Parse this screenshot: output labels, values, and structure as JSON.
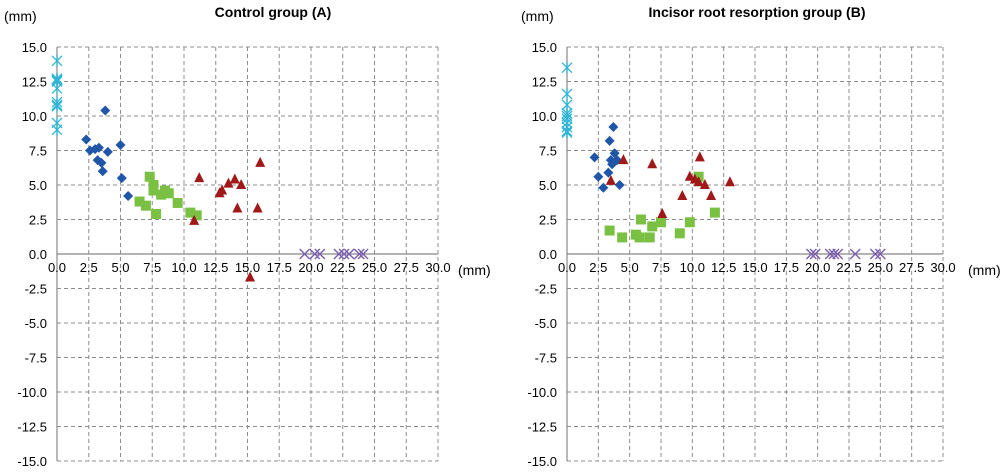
{
  "chart_data": [
    {
      "type": "scatter",
      "title": "Control group (A)",
      "xlabel": "(mm)",
      "ylabel": "(mm)",
      "xlim": [
        0,
        30
      ],
      "ylim": [
        -15,
        15
      ],
      "xticks": [
        "0.0",
        "2.5",
        "5.0",
        "7.5",
        "10.0",
        "12.5",
        "15.0",
        "17.5",
        "20.0",
        "22.5",
        "25.0",
        "27.5",
        "30.0"
      ],
      "yticks": [
        "15.0",
        "12.5",
        "10.0",
        "7.5",
        "5.0",
        "2.5",
        "0.0",
        "-2.5",
        "-5.0",
        "-7.5",
        "-10.0",
        "-12.5",
        "-15.0"
      ],
      "grid": true,
      "series": [
        {
          "marker": "star",
          "color": "#31b5d6",
          "x": [
            0,
            0,
            0,
            0,
            0,
            0,
            0,
            0,
            0,
            0,
            0
          ],
          "y": [
            14.0,
            12.7,
            12.6,
            12.5,
            12.0,
            11.0,
            10.8,
            10.7,
            9.5,
            9.0,
            12.6
          ]
        },
        {
          "marker": "diamond",
          "color": "#1f56a8",
          "x": [
            2.3,
            2.6,
            3.0,
            3.2,
            3.3,
            3.5,
            3.6,
            3.8,
            4.0,
            5.0,
            5.1,
            5.6
          ],
          "y": [
            8.3,
            7.5,
            7.6,
            6.8,
            7.7,
            6.6,
            6.0,
            10.4,
            7.4,
            7.9,
            5.5,
            4.2
          ]
        },
        {
          "marker": "square",
          "color": "#7ac143",
          "x": [
            6.5,
            7.0,
            7.3,
            7.6,
            7.6,
            7.8,
            8.2,
            8.5,
            8.8,
            9.5,
            10.5,
            11.0
          ],
          "y": [
            3.8,
            3.5,
            5.6,
            5.0,
            4.6,
            2.9,
            4.3,
            4.6,
            4.4,
            3.7,
            3.0,
            2.8
          ]
        },
        {
          "marker": "triangle",
          "color": "#a01818",
          "x": [
            10.8,
            11.2,
            12.8,
            13.0,
            13.5,
            14.0,
            14.5,
            14.2,
            15.2,
            15.8,
            16.0
          ],
          "y": [
            2.4,
            5.5,
            4.4,
            4.6,
            5.1,
            5.4,
            5.0,
            3.3,
            -1.7,
            3.3,
            6.6
          ]
        },
        {
          "marker": "x",
          "color": "#7b5fb0",
          "x": [
            19.5,
            20.3,
            20.7,
            22.2,
            22.6,
            23.0,
            23.8,
            24.1
          ],
          "y": [
            0,
            0,
            0,
            0,
            0,
            0,
            0,
            0
          ]
        }
      ]
    },
    {
      "type": "scatter",
      "title": "Incisor root resorption group (B)",
      "xlabel": "(mm)",
      "ylabel": "(mm)",
      "xlim": [
        0,
        30
      ],
      "ylim": [
        -15,
        15
      ],
      "xticks": [
        "0.0",
        "2.5",
        "5.0",
        "7.5",
        "10.0",
        "12.5",
        "15.0",
        "17.5",
        "20.0",
        "22.5",
        "25.0",
        "27.5",
        "30.0"
      ],
      "yticks": [
        "15.0",
        "12.5",
        "10.0",
        "7.5",
        "5.0",
        "2.5",
        "0.0",
        "-2.5",
        "-5.0",
        "-7.5",
        "-10.0",
        "-12.5",
        "-15.0"
      ],
      "grid": true,
      "series": [
        {
          "marker": "star",
          "color": "#31b5d6",
          "x": [
            0,
            0,
            0,
            0,
            0,
            0,
            0,
            0,
            0,
            0
          ],
          "y": [
            13.5,
            11.6,
            10.8,
            10.2,
            10.0,
            9.8,
            9.5,
            9.2,
            8.9,
            8.8
          ]
        },
        {
          "marker": "diamond",
          "color": "#1f56a8",
          "x": [
            2.2,
            2.5,
            2.9,
            3.3,
            3.4,
            3.5,
            3.6,
            3.7,
            3.8,
            4.0,
            4.2
          ],
          "y": [
            7.0,
            5.6,
            4.8,
            5.9,
            8.2,
            6.8,
            6.5,
            9.2,
            7.3,
            6.8,
            5.0
          ]
        },
        {
          "marker": "square",
          "color": "#7ac143",
          "x": [
            3.4,
            4.4,
            5.5,
            5.8,
            5.9,
            6.6,
            6.8,
            7.5,
            9.0,
            9.8,
            10.5,
            11.8
          ],
          "y": [
            1.7,
            1.2,
            1.4,
            1.2,
            2.5,
            1.2,
            2.0,
            2.3,
            1.5,
            2.3,
            5.6,
            3.0
          ]
        },
        {
          "marker": "triangle",
          "color": "#a01818",
          "x": [
            3.5,
            4.5,
            6.8,
            7.6,
            9.2,
            9.8,
            10.2,
            10.5,
            10.6,
            11.0,
            11.5,
            13.0
          ],
          "y": [
            5.3,
            6.8,
            6.5,
            2.9,
            4.2,
            5.6,
            5.4,
            5.2,
            7.0,
            5.0,
            4.2,
            5.2
          ]
        },
        {
          "marker": "x",
          "color": "#7b5fb0",
          "x": [
            19.5,
            19.8,
            21.0,
            21.3,
            21.6,
            23.0,
            24.6,
            25.0
          ],
          "y": [
            0,
            0,
            0,
            0,
            0,
            0,
            0,
            0
          ]
        }
      ]
    }
  ]
}
